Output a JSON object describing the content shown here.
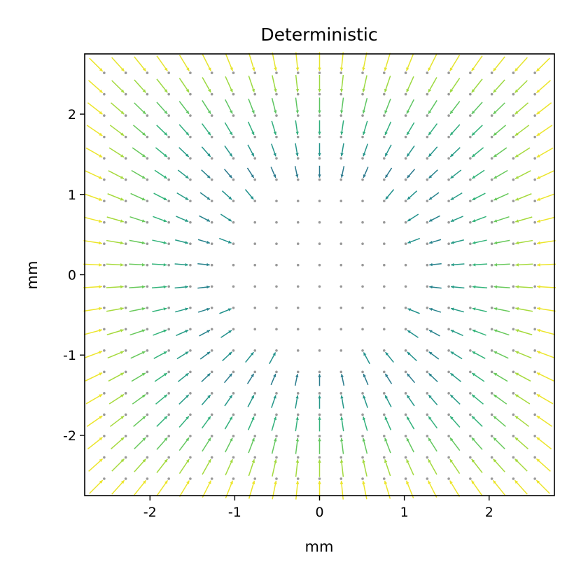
{
  "chart_data": {
    "type": "quiver",
    "title": "Deterministic",
    "xlabel": "mm",
    "ylabel": "mm",
    "xlim": [
      -2.77,
      2.77
    ],
    "ylim": [
      -2.75,
      2.75
    ],
    "xticks": [
      -2,
      -1,
      0,
      1,
      2
    ],
    "xtick_labels": [
      "-2",
      "-1",
      "0",
      "1",
      "2"
    ],
    "yticks": [
      -2,
      -1,
      0,
      1,
      2
    ],
    "ytick_labels": [
      "-2",
      "-1",
      "0",
      "1",
      "2"
    ],
    "grid": false,
    "grid_points": {
      "x_start": -2.54,
      "x_step": 0.254,
      "nx": 21,
      "y_start": -2.54,
      "y_step": 0.266,
      "ny": 20
    },
    "field_description": "Arrows start near each grey grid point and point back toward it; magnitude is zero in the central region (|x|,|y| < ~1.2 mm) and grows toward the corners; color encodes magnitude with the viridis colormap.",
    "colormap": [
      "#30678d",
      "#21918c",
      "#35b779",
      "#90d743",
      "#fde725"
    ],
    "point_color": "#999999"
  }
}
